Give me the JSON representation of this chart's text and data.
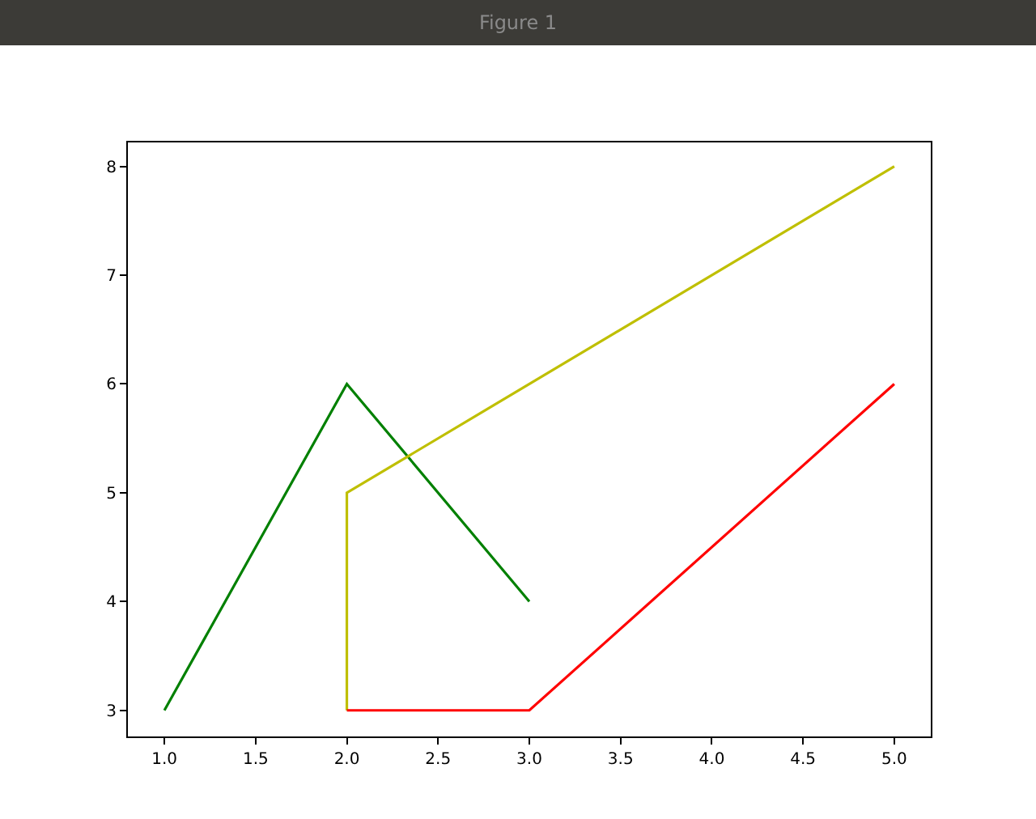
{
  "chart_data": {
    "type": "line",
    "title": "Figure 1",
    "series": [
      {
        "color": "#008000",
        "x": [
          1,
          2,
          3
        ],
        "values": [
          3,
          6,
          4
        ]
      },
      {
        "color": "#bfbf00",
        "x": [
          2,
          2,
          5
        ],
        "values": [
          3,
          5,
          8
        ]
      },
      {
        "color": "#ff0000",
        "x": [
          2,
          3,
          5
        ],
        "values": [
          3,
          3,
          6
        ]
      }
    ],
    "xlim": [
      0.8,
      5.2
    ],
    "ylim": [
      2.76,
      8.22
    ],
    "xticks": [
      {
        "value": 1,
        "label": "1.0"
      },
      {
        "value": 1.5,
        "label": "1.5"
      },
      {
        "value": 2,
        "label": "2.0"
      },
      {
        "value": 2.5,
        "label": "2.5"
      },
      {
        "value": 3,
        "label": "3.0"
      },
      {
        "value": 3.5,
        "label": "3.5"
      },
      {
        "value": 4,
        "label": "4.0"
      },
      {
        "value": 4.5,
        "label": "4.5"
      },
      {
        "value": 5,
        "label": "5.0"
      }
    ],
    "yticks": [
      3,
      4,
      5,
      6,
      7,
      8
    ],
    "legend": false,
    "marker": "none",
    "line_style": "solid"
  }
}
